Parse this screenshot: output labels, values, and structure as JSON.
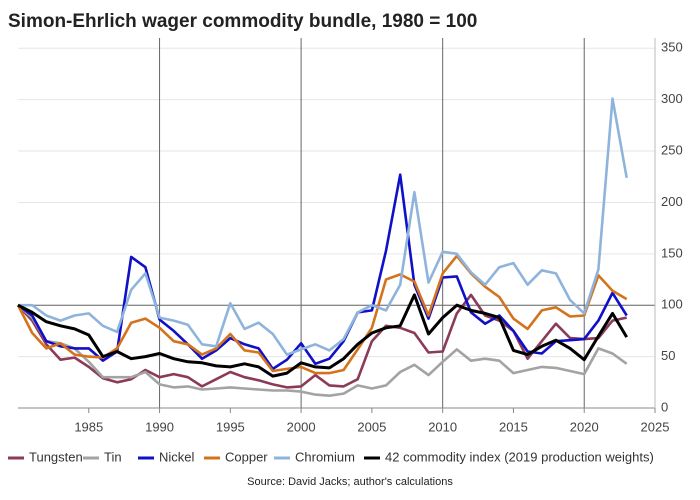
{
  "chart_data": {
    "type": "line",
    "title": "Simon-Ehrlich wager commodity bundle, 1980 = 100",
    "source": "Source: David Jacks; author's calculations",
    "x": [
      1980,
      1981,
      1982,
      1983,
      1984,
      1985,
      1986,
      1987,
      1988,
      1989,
      1990,
      1991,
      1992,
      1993,
      1994,
      1995,
      1996,
      1997,
      1998,
      1999,
      2000,
      2001,
      2002,
      2003,
      2004,
      2005,
      2006,
      2007,
      2008,
      2009,
      2010,
      2011,
      2012,
      2013,
      2014,
      2015,
      2016,
      2017,
      2018,
      2019,
      2020,
      2021,
      2022,
      2023
    ],
    "xlim": [
      1980,
      2025
    ],
    "xticks": [
      1985,
      1990,
      1995,
      2000,
      2005,
      2010,
      2015,
      2020,
      2025
    ],
    "ylim": [
      0,
      360
    ],
    "yticks": [
      0,
      50,
      100,
      150,
      200,
      250,
      300,
      350
    ],
    "grid": true,
    "x_grid_lines": [
      1990,
      2000,
      2010,
      2020
    ],
    "reference_line": 100,
    "legend": "bottom",
    "series": [
      {
        "name": "Tungsten",
        "color": "#8b3a5a",
        "values": [
          100,
          85,
          62,
          47,
          49,
          40,
          29,
          25,
          28,
          37,
          30,
          33,
          30,
          21,
          28,
          35,
          30,
          27,
          23,
          20,
          21,
          32,
          22,
          21,
          28,
          65,
          80,
          78,
          73,
          54,
          55,
          92,
          110,
          90,
          85,
          75,
          48,
          65,
          82,
          68,
          67,
          68,
          85,
          88
        ]
      },
      {
        "name": "Tin",
        "color": "#a3a3a3",
        "values": [
          100,
          88,
          65,
          63,
          58,
          45,
          30,
          30,
          30,
          35,
          23,
          20,
          21,
          18,
          19,
          20,
          19,
          18,
          17,
          17,
          16,
          13,
          12,
          14,
          22,
          19,
          22,
          35,
          42,
          32,
          45,
          57,
          46,
          48,
          46,
          34,
          37,
          40,
          39,
          36,
          33,
          58,
          53,
          43
        ]
      },
      {
        "name": "Nickel",
        "color": "#1010c8",
        "values": [
          100,
          90,
          65,
          60,
          58,
          58,
          46,
          55,
          147,
          137,
          86,
          75,
          62,
          48,
          56,
          68,
          62,
          58,
          38,
          47,
          63,
          43,
          48,
          65,
          93,
          95,
          153,
          227,
          120,
          87,
          127,
          128,
          93,
          82,
          90,
          75,
          55,
          53,
          65,
          66,
          67,
          85,
          112,
          90
        ]
      },
      {
        "name": "Copper",
        "color": "#d4731c",
        "values": [
          100,
          73,
          58,
          63,
          52,
          50,
          49,
          58,
          83,
          87,
          78,
          65,
          62,
          52,
          58,
          72,
          56,
          54,
          36,
          38,
          40,
          34,
          34,
          37,
          57,
          78,
          125,
          130,
          123,
          90,
          131,
          148,
          131,
          118,
          108,
          87,
          77,
          95,
          98,
          89,
          90,
          129,
          114,
          106
        ]
      },
      {
        "name": "Chromium",
        "color": "#8fb4dc",
        "values": [
          100,
          100,
          90,
          85,
          90,
          92,
          80,
          74,
          115,
          131,
          88,
          85,
          81,
          62,
          60,
          102,
          77,
          83,
          72,
          52,
          57,
          62,
          56,
          67,
          93,
          100,
          95,
          120,
          210,
          122,
          152,
          150,
          132,
          120,
          137,
          141,
          120,
          134,
          131,
          105,
          92,
          135,
          301,
          224
        ]
      },
      {
        "name": "42 commodity index (2019 production weights)",
        "color": "#000000",
        "values": [
          100,
          93,
          84,
          80,
          77,
          71,
          50,
          55,
          48,
          50,
          53,
          48,
          45,
          44,
          41,
          40,
          43,
          40,
          31,
          34,
          44,
          40,
          39,
          48,
          62,
          73,
          78,
          80,
          110,
          72,
          88,
          100,
          95,
          92,
          88,
          56,
          52,
          60,
          66,
          58,
          47,
          70,
          92,
          69
        ]
      }
    ]
  }
}
